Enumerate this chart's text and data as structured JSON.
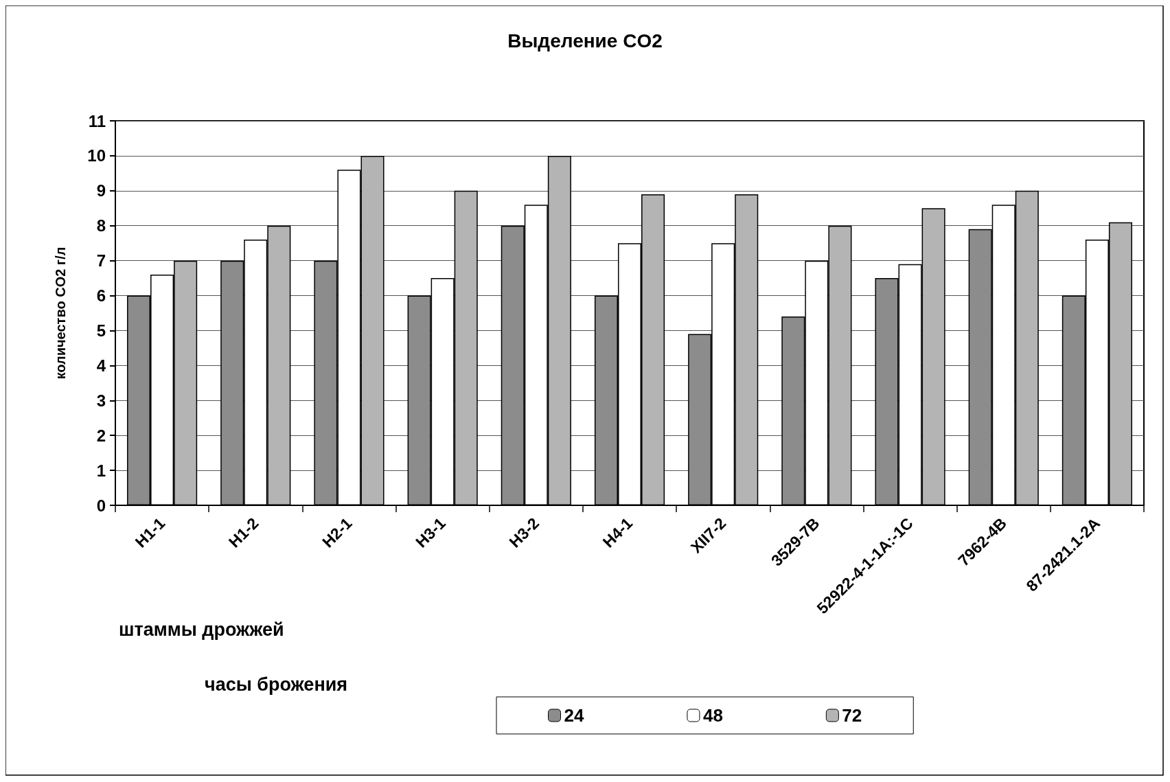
{
  "chart_data": {
    "type": "bar",
    "title": "Выделение CO2",
    "xlabel": "штаммы дрожжей",
    "ylabel": "количество CO2 г/л",
    "legend_title": "часы брожения",
    "categories": [
      "H1-1",
      "H1-2",
      "H2-1",
      "H3-1",
      "H3-2",
      "H4-1",
      "XII7-2",
      "3529-7B",
      "52922-4-1-1A:-1C",
      "7962-4B",
      "87-2421.1-2A"
    ],
    "series": [
      {
        "name": "24",
        "color": "#8c8c8c",
        "values": [
          6,
          7,
          7,
          6,
          8,
          6,
          4.9,
          5.4,
          6.5,
          7.9,
          6.0
        ]
      },
      {
        "name": "48",
        "color": "#ffffff",
        "values": [
          6.6,
          7.6,
          9.6,
          6.5,
          8.6,
          7.5,
          7.5,
          7.0,
          6.9,
          8.6,
          7.6
        ]
      },
      {
        "name": "72",
        "color": "#b4b4b4",
        "values": [
          7,
          8,
          10,
          9,
          10,
          8.9,
          8.9,
          8.0,
          8.5,
          9.0,
          8.1
        ]
      }
    ],
    "ylim": [
      0,
      11
    ],
    "yticks": [
      0,
      1,
      2,
      3,
      4,
      5,
      6,
      7,
      8,
      9,
      10,
      11
    ],
    "grid": "y",
    "legend": "bottom"
  }
}
